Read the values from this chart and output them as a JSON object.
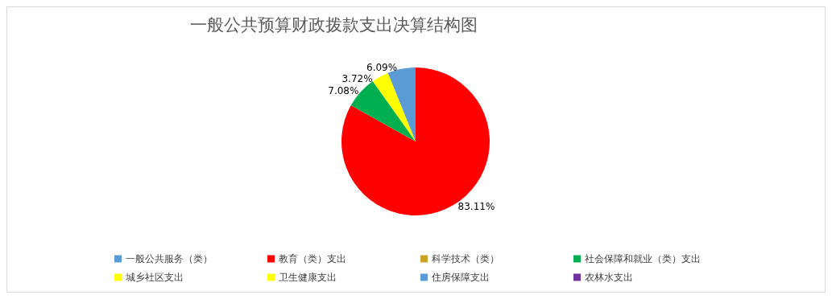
{
  "chart_data": {
    "type": "pie",
    "title": "一般公共预算财政拨款支出决算结构图",
    "categories": [
      "一般公共服务（类）",
      "教育（类）支出",
      "科学技术（类）",
      "社会保障和就业（类）支出",
      "城乡社区支出",
      "卫生健康支出",
      "住房保障支出",
      "农林水支出"
    ],
    "values": [
      0,
      83.11,
      0,
      7.08,
      3.72,
      0,
      6.09,
      0
    ],
    "value_labels": [
      null,
      "83.11%",
      null,
      "7.08%",
      "3.72%",
      null,
      "6.09%",
      null
    ],
    "colors": [
      "#5b9bd5",
      "#ff0000",
      "#c9a227",
      "#00b050",
      "#ffff00",
      "#ffff00",
      "#5b9bd5",
      "#7030a0"
    ],
    "legend": "bottom"
  }
}
